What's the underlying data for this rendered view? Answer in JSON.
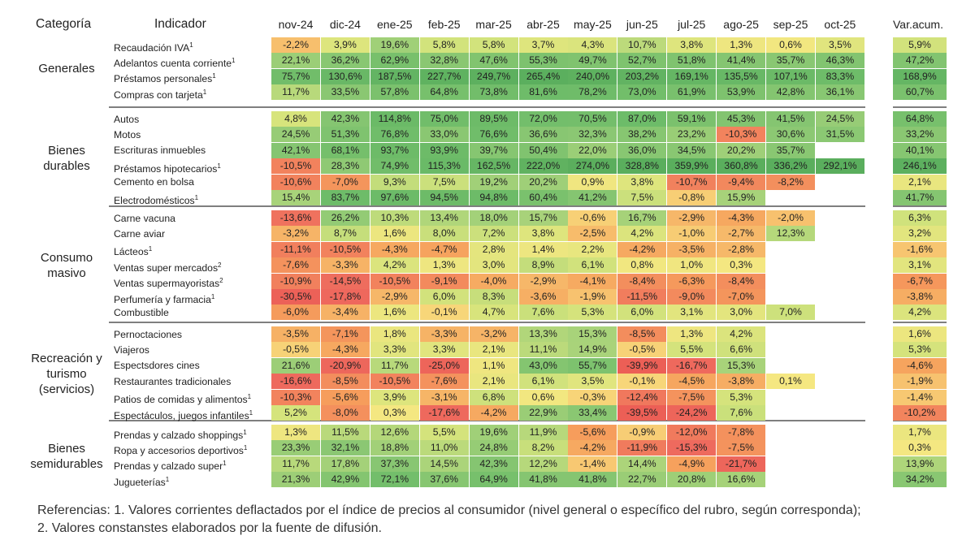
{
  "headers": {
    "category": "Categoría",
    "indicator": "Indicador",
    "months": [
      "nov-24",
      "dic-24",
      "ene-25",
      "feb-25",
      "mar-25",
      "abr-25",
      "may-25",
      "jun-25",
      "jul-25",
      "ago-25",
      "sep-25",
      "oct-25"
    ],
    "accum": "Var.acum."
  },
  "chart_data": {
    "type": "heatmap",
    "value_unit": "%",
    "columns": [
      "nov-24",
      "dic-24",
      "ene-25",
      "feb-25",
      "mar-25",
      "abr-25",
      "may-25",
      "jun-25",
      "jul-25",
      "ago-25",
      "sep-25",
      "oct-25"
    ],
    "groups": [
      {
        "category": "Generales",
        "rows": [
          {
            "label": "Recaudación IVA",
            "note": "1",
            "values": [
              -2.2,
              3.9,
              19.6,
              5.8,
              5.8,
              3.7,
              4.3,
              10.7,
              3.8,
              1.3,
              0.6,
              3.5
            ],
            "accum": 5.9
          },
          {
            "label": "Adelantos cuenta corriente",
            "note": "1",
            "values": [
              22.1,
              36.2,
              62.9,
              32.8,
              47.6,
              55.3,
              49.7,
              52.7,
              51.8,
              41.4,
              35.7,
              46.3
            ],
            "accum": 47.2
          },
          {
            "label": "Préstamos personales",
            "note": "1",
            "values": [
              75.7,
              130.6,
              187.5,
              227.7,
              249.7,
              265.4,
              240.0,
              203.2,
              169.1,
              135.5,
              107.1,
              83.3
            ],
            "accum": 168.9
          },
          {
            "label": "Compras con tarjeta",
            "note": "1",
            "values": [
              11.7,
              33.5,
              57.8,
              64.8,
              73.8,
              81.6,
              78.2,
              73.0,
              61.9,
              53.9,
              42.8,
              36.1
            ],
            "accum": 60.7
          }
        ]
      },
      {
        "category": "Bienes durables",
        "rows": [
          {
            "label": "Autos",
            "note": "",
            "values": [
              4.8,
              42.3,
              114.8,
              75.0,
              89.5,
              72.0,
              70.5,
              87.0,
              59.1,
              45.3,
              41.5,
              24.5
            ],
            "accum": 64.8
          },
          {
            "label": "Motos",
            "note": "",
            "values": [
              24.5,
              51.3,
              76.8,
              33.0,
              76.6,
              36.6,
              32.3,
              38.2,
              23.2,
              -10.3,
              30.6,
              31.5
            ],
            "accum": 33.2
          },
          {
            "label": "Escrituras inmuebles",
            "note": "",
            "values": [
              42.1,
              68.1,
              93.7,
              93.9,
              39.7,
              50.4,
              22.0,
              36.0,
              34.5,
              20.2,
              35.7,
              null
            ],
            "accum": 40.1
          },
          {
            "label": "Préstamos hipotecarios",
            "note": "1",
            "values": [
              -10.5,
              28.3,
              74.9,
              115.3,
              162.5,
              222.0,
              274.0,
              328.8,
              359.9,
              360.8,
              336.2,
              292.1
            ],
            "accum": 246.1
          },
          {
            "label": "Cemento en bolsa",
            "note": "",
            "values": [
              -10.6,
              -7.0,
              9.3,
              7.5,
              19.2,
              20.2,
              0.9,
              3.8,
              -10.7,
              -9.4,
              -8.2,
              null
            ],
            "accum": 2.1
          },
          {
            "label": "Electrodomésticos",
            "note": "1",
            "values": [
              15.4,
              83.7,
              97.6,
              94.5,
              94.8,
              60.4,
              41.2,
              7.5,
              -0.8,
              15.9,
              null,
              null
            ],
            "accum": 41.7
          }
        ]
      },
      {
        "category": "Consumo masivo",
        "rows": [
          {
            "label": "Carne vacuna",
            "note": "",
            "values": [
              -13.6,
              26.2,
              10.3,
              13.4,
              18.0,
              15.7,
              -0.6,
              16.7,
              -2.9,
              -4.3,
              -2.0,
              null
            ],
            "accum": 6.3
          },
          {
            "label": "Carne aviar",
            "note": "",
            "values": [
              -3.2,
              8.7,
              1.6,
              8.0,
              7.2,
              3.8,
              -2.5,
              4.2,
              -1.0,
              -2.7,
              12.3,
              null
            ],
            "accum": 3.2
          },
          {
            "label": "Lácteos",
            "note": "1",
            "values": [
              -11.1,
              -10.5,
              -4.3,
              -4.7,
              2.8,
              1.4,
              2.2,
              -4.2,
              -3.5,
              -2.8,
              null,
              null
            ],
            "accum": -1.6
          },
          {
            "label": "Ventas super mercados",
            "note": "2",
            "values": [
              -7.6,
              -3.3,
              4.2,
              1.3,
              3.0,
              8.9,
              6.1,
              0.8,
              1.0,
              0.3,
              null,
              null
            ],
            "accum": 3.1
          },
          {
            "label": "Ventas supermayoristas",
            "note": "2",
            "values": [
              -10.9,
              -14.5,
              -10.5,
              -9.1,
              -4.0,
              -2.9,
              -4.1,
              -8.4,
              -6.3,
              -8.4,
              null,
              null
            ],
            "accum": -6.7
          },
          {
            "label": "Perfumería y farmacia",
            "note": "1",
            "values": [
              -30.5,
              -17.8,
              -2.9,
              6.0,
              8.3,
              -3.6,
              -1.9,
              -11.5,
              -9.0,
              -7.0,
              null,
              null
            ],
            "accum": -3.8
          },
          {
            "label": "Combustible",
            "note": "",
            "values": [
              -6.0,
              -3.4,
              1.6,
              -0.1,
              4.7,
              7.6,
              5.3,
              6.0,
              3.1,
              3.0,
              7.0,
              null
            ],
            "accum": 4.2
          }
        ]
      },
      {
        "category": "Recreación y turismo (servicios)",
        "rows": [
          {
            "label": "Pernoctaciones",
            "note": "",
            "values": [
              -3.5,
              -7.1,
              1.8,
              -3.3,
              -3.2,
              13.3,
              15.3,
              -8.5,
              1.3,
              4.2,
              null,
              null
            ],
            "accum": 1.6
          },
          {
            "label": "Viajeros",
            "note": "",
            "values": [
              -0.5,
              -4.3,
              3.3,
              3.3,
              2.1,
              11.1,
              14.9,
              -0.5,
              5.5,
              6.6,
              null,
              null
            ],
            "accum": 5.3
          },
          {
            "label": "Espectsdores cines",
            "note": "",
            "values": [
              21.6,
              -20.9,
              11.7,
              -25.0,
              1.1,
              43.0,
              55.7,
              -39.9,
              -16.7,
              15.3,
              null,
              null
            ],
            "accum": -4.6
          },
          {
            "label": "Restaurantes tradicionales",
            "note": "",
            "values": [
              -16.6,
              -8.5,
              -10.5,
              -7.6,
              2.1,
              6.1,
              3.5,
              -0.1,
              -4.5,
              -3.8,
              0.1,
              null
            ],
            "accum": -1.9
          },
          {
            "label": "Patios de comidas y alimentos",
            "note": "1",
            "values": [
              -10.3,
              -5.6,
              3.9,
              -3.1,
              6.8,
              0.6,
              -0.3,
              -12.4,
              -7.5,
              5.3,
              null,
              null
            ],
            "accum": -1.4
          },
          {
            "label": "Espectáculos, juegos infantiles",
            "note": "1",
            "values": [
              5.2,
              -8.0,
              0.3,
              -17.6,
              -4.2,
              22.9,
              33.4,
              -39.5,
              -24.2,
              7.6,
              null,
              null
            ],
            "accum": -10.2
          }
        ]
      },
      {
        "category": "Bienes semidurables",
        "rows": [
          {
            "label": "Prendas y calzado shoppings",
            "note": "1",
            "values": [
              1.3,
              11.5,
              12.6,
              5.5,
              19.6,
              11.9,
              -5.6,
              -0.9,
              -12.0,
              -7.8,
              null,
              null
            ],
            "accum": 1.7
          },
          {
            "label": "Ropa y accesorios deportivos",
            "note": "1",
            "values": [
              23.3,
              32.1,
              18.8,
              11.0,
              24.8,
              8.2,
              -4.2,
              -11.9,
              -15.3,
              -7.5,
              null,
              null
            ],
            "accum": 0.3
          },
          {
            "label": "Prendas y calzado super",
            "note": "1",
            "values": [
              11.7,
              17.8,
              37.3,
              14.5,
              42.3,
              12.2,
              -1.4,
              14.4,
              -4.9,
              -21.7,
              null,
              null
            ],
            "accum": 13.9
          },
          {
            "label": "Jugueterías",
            "note": "1",
            "values": [
              21.3,
              42.9,
              72.1,
              37.6,
              64.9,
              41.8,
              41.8,
              22.7,
              20.8,
              16.6,
              null,
              null
            ],
            "accum": 34.2
          }
        ]
      }
    ]
  },
  "footnotes": [
    "Referencias: 1. Valores corrientes deflactados por el índice de precios al consumidor (nivel general o específico del rubro, según corresponda);",
    "2. Valores constanstes elaborados por la fuente de difusión."
  ]
}
